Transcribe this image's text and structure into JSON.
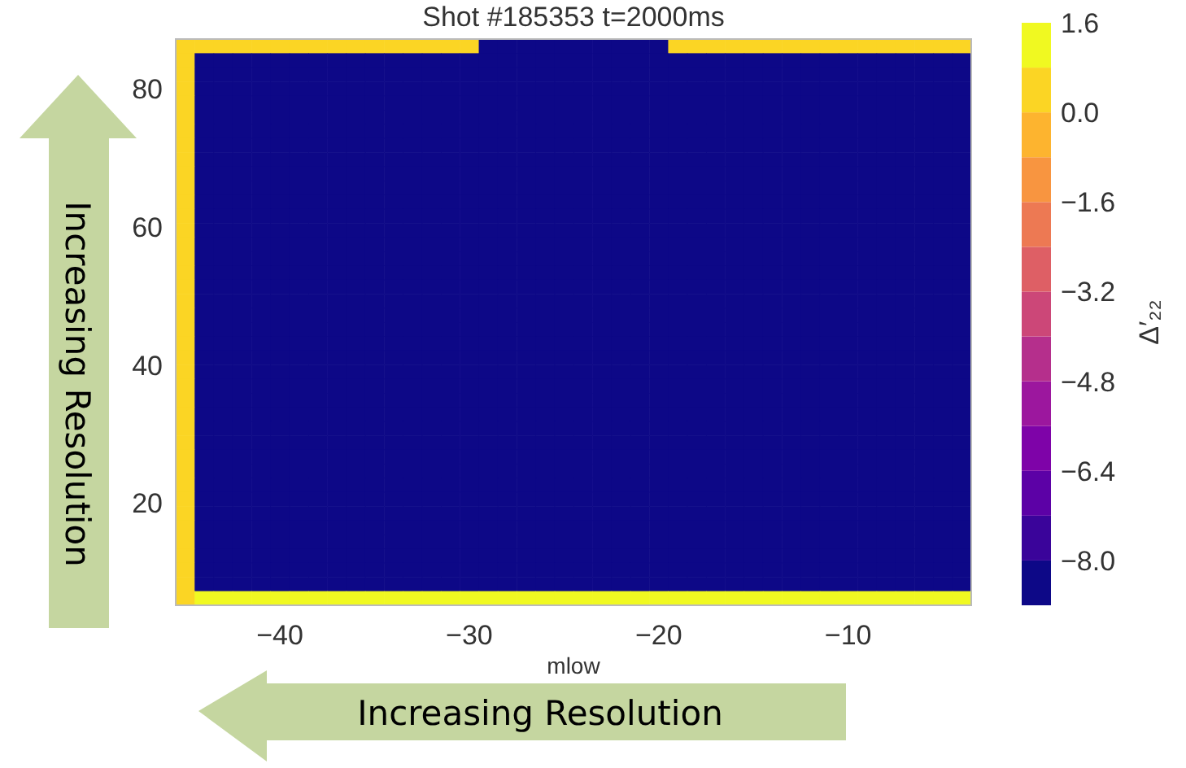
{
  "chart_data": {
    "type": "heatmap",
    "title": "Shot #185353 t=2000ms",
    "xlabel": "mlow",
    "clabel": "Δ′₂₂",
    "annotations": [
      "Increasing Resolution",
      "Increasing Resolution"
    ],
    "xlim": [
      -45.5,
      -3.5
    ],
    "xticks": [
      {
        "value": -40,
        "label": "−40"
      },
      {
        "value": -30,
        "label": "−30"
      },
      {
        "value": -20,
        "label": "−20"
      },
      {
        "value": -10,
        "label": "−10"
      }
    ],
    "ylim": [
      5.2,
      87.2
    ],
    "yticks": [
      20,
      40,
      60,
      80
    ],
    "clim": [
      -8.8,
      1.6
    ],
    "cticks": [
      {
        "value": 1.6,
        "label": "1.6"
      },
      {
        "value": 0,
        "label": "0.0"
      },
      {
        "value": -1.6,
        "label": "−1.6"
      },
      {
        "value": -3.2,
        "label": "−3.2"
      },
      {
        "value": -4.8,
        "label": "−4.8"
      },
      {
        "value": -6.4,
        "label": "−6.4"
      },
      {
        "value": -8.0,
        "label": "−8.0"
      }
    ],
    "cells": [
      [
        0.4,
        0.4,
        0.4,
        0.4,
        0.4,
        0.4,
        0.4,
        0.4,
        0.4,
        0.4,
        0.4,
        0.4,
        0.4,
        0.4,
        0.4,
        0.4,
        -8.4,
        -8.4,
        -8.4,
        -8.4,
        -8.4,
        -8.4,
        -8.4,
        -8.4,
        -8.4,
        -8.4,
        0.4,
        0.4,
        0.4,
        0.4,
        0.4,
        0.4,
        0.4,
        0.4,
        0.4,
        0.4,
        0.4,
        0.4,
        0.4,
        0.4,
        0.4,
        0.4
      ],
      [
        0.4,
        -8.4,
        -8.4,
        -8.4,
        -8.4,
        -8.4,
        -8.4,
        -8.4,
        -8.4,
        -8.4,
        -8.4,
        -8.4,
        -8.4,
        -8.4,
        -8.4,
        -8.4,
        -8.4,
        -8.4,
        -8.4,
        -8.4,
        -8.4,
        -8.4,
        -8.4,
        -8.4,
        -8.4,
        -8.4,
        -8.4,
        -8.4,
        -8.4,
        -8.4,
        -8.4,
        -8.4,
        -8.4,
        -8.4,
        -8.4,
        -8.4,
        -8.4,
        -8.4,
        -8.4,
        -8.4,
        -8.4,
        -8.4
      ],
      [
        0.4,
        -8.4,
        -8.4,
        -8.4,
        -8.4,
        -8.4,
        -8.4,
        -8.4,
        -8.4,
        -8.4,
        -8.4,
        -8.4,
        -8.4,
        -8.4,
        -8.4,
        -8.4,
        -8.4,
        -8.4,
        -8.4,
        -8.4,
        -8.4,
        -8.4,
        -8.4,
        -8.4,
        -8.4,
        -8.4,
        -8.4,
        -8.4,
        -8.4,
        -8.4,
        -8.4,
        -8.4,
        -8.4,
        -8.4,
        -8.4,
        -8.4,
        -8.4,
        -8.4,
        -8.4,
        -8.4,
        -8.4,
        -8.4
      ],
      [
        0.4,
        -8.4,
        -8.4,
        -8.4,
        -8.4,
        -8.4,
        -8.4,
        -8.4,
        -8.4,
        -8.4,
        -8.4,
        -8.4,
        -8.4,
        -8.4,
        -8.4,
        -8.4,
        -8.4,
        -8.4,
        -8.4,
        -8.4,
        -8.4,
        -8.4,
        -8.4,
        -8.4,
        -8.4,
        -8.4,
        -8.4,
        -8.4,
        -8.4,
        -8.4,
        -8.4,
        -8.4,
        -8.4,
        -8.4,
        -8.4,
        -8.4,
        -8.4,
        -8.4,
        -8.4,
        -8.4,
        -8.4,
        -8.4
      ],
      [
        0.4,
        -8.4,
        -8.4,
        -8.4,
        -8.4,
        -8.4,
        -8.4,
        -8.4,
        -8.4,
        -8.4,
        -8.4,
        -8.4,
        -8.4,
        -8.4,
        -8.4,
        -8.4,
        -8.4,
        -8.4,
        -8.4,
        -8.4,
        -8.4,
        -8.4,
        -8.4,
        -8.4,
        -8.4,
        -8.4,
        -8.4,
        -8.4,
        -8.4,
        -8.4,
        -8.4,
        -8.4,
        -8.4,
        -8.4,
        -8.4,
        -8.4,
        -8.4,
        -8.4,
        -8.4,
        -8.4,
        -8.4,
        -8.4
      ],
      [
        0.4,
        -8.4,
        -8.4,
        -8.4,
        -8.4,
        -8.4,
        -8.4,
        -8.4,
        -8.4,
        -8.4,
        -8.4,
        -8.4,
        -8.4,
        -8.4,
        -8.4,
        -8.4,
        -8.4,
        -8.4,
        -8.4,
        -8.4,
        -8.4,
        -8.4,
        -8.4,
        -8.4,
        -8.4,
        -8.4,
        -8.4,
        -8.4,
        -8.4,
        -8.4,
        -8.4,
        -8.4,
        -8.4,
        -8.4,
        -8.4,
        -8.4,
        -8.4,
        -8.4,
        -8.4,
        -8.4,
        -8.4,
        -8.4
      ],
      [
        0.4,
        -8.4,
        -8.4,
        -8.4,
        -8.4,
        -8.4,
        -8.4,
        -8.4,
        -8.4,
        -8.4,
        -8.4,
        -8.4,
        -8.4,
        -8.4,
        -8.4,
        -8.4,
        -8.4,
        -8.4,
        -8.4,
        -8.4,
        -8.4,
        -8.4,
        -8.4,
        -8.4,
        -8.4,
        -8.4,
        -8.4,
        -8.4,
        -8.4,
        -8.4,
        -8.4,
        -8.4,
        -8.4,
        -8.4,
        -8.4,
        -8.4,
        -8.4,
        -8.4,
        -8.4,
        -8.4,
        -8.4,
        -8.4
      ],
      [
        0.4,
        -8.4,
        -8.4,
        -8.4,
        -8.4,
        -8.4,
        -8.4,
        -8.4,
        -8.4,
        -8.4,
        -8.4,
        -8.4,
        -8.4,
        -8.4,
        -8.4,
        -8.4,
        -8.4,
        -8.4,
        -8.4,
        -8.4,
        -8.4,
        -8.4,
        -8.4,
        -8.4,
        -8.4,
        -8.4,
        -8.4,
        -8.4,
        -8.4,
        -8.4,
        -8.4,
        -8.4,
        -8.4,
        -8.4,
        -8.4,
        -8.4,
        -8.4,
        -8.4,
        -8.4,
        -8.4,
        -8.4,
        -8.4
      ],
      [
        0.4,
        -8.4,
        -8.4,
        -8.4,
        -8.4,
        -8.4,
        -8.4,
        -8.4,
        -8.4,
        -8.4,
        -8.4,
        -8.4,
        -8.4,
        -8.4,
        -8.4,
        -8.4,
        -8.4,
        -8.4,
        -8.4,
        -8.4,
        -8.4,
        -8.4,
        -8.4,
        -8.4,
        -8.4,
        -8.4,
        -8.4,
        -8.4,
        -8.4,
        -8.4,
        -8.4,
        -8.4,
        -8.4,
        -8.4,
        -8.4,
        -8.4,
        -8.4,
        -8.4,
        -8.4,
        -8.4,
        -8.4,
        -8.4
      ],
      [
        0.4,
        -8.4,
        -8.4,
        -8.4,
        -8.4,
        -8.4,
        -8.4,
        -8.4,
        -8.4,
        -8.4,
        -8.4,
        -8.4,
        -8.4,
        -8.4,
        -8.4,
        -8.4,
        -8.4,
        -8.4,
        -8.4,
        -8.4,
        -8.4,
        -8.4,
        -8.4,
        -8.4,
        -8.4,
        -8.4,
        -8.4,
        -8.4,
        -8.4,
        -8.4,
        -8.4,
        -8.4,
        -8.4,
        -8.4,
        -8.4,
        -8.4,
        -8.4,
        -8.4,
        -8.4,
        -8.4,
        -8.4,
        -8.4
      ],
      [
        0.4,
        -8.4,
        -8.4,
        -8.4,
        -8.4,
        -8.4,
        -8.4,
        -8.4,
        -8.4,
        -8.4,
        -8.4,
        -8.4,
        -8.4,
        -8.4,
        -8.4,
        -8.4,
        -8.4,
        -8.4,
        -8.4,
        -8.4,
        -8.4,
        -8.4,
        -8.4,
        -8.4,
        -8.4,
        -8.4,
        -8.4,
        -8.4,
        -8.4,
        -8.4,
        -8.4,
        -8.4,
        -8.4,
        -8.4,
        -8.4,
        -8.4,
        -8.4,
        -8.4,
        -8.4,
        -8.4,
        -8.4,
        -8.4
      ],
      [
        0.4,
        -8.4,
        -8.4,
        -8.4,
        -8.4,
        -8.4,
        -8.4,
        -8.4,
        -8.4,
        -8.4,
        -8.4,
        -8.4,
        -8.4,
        -8.4,
        -8.4,
        -8.4,
        -8.4,
        -8.4,
        -8.4,
        -8.4,
        -8.4,
        -8.4,
        -8.4,
        -8.4,
        -8.4,
        -8.4,
        -8.4,
        -8.4,
        -8.4,
        -8.4,
        -8.4,
        -8.4,
        -8.4,
        -8.4,
        -8.4,
        -8.4,
        -8.4,
        -8.4,
        -8.4,
        -8.4,
        -8.4,
        -8.4
      ],
      [
        0.4,
        -8.4,
        -8.4,
        -8.4,
        -8.4,
        -8.4,
        -8.4,
        -8.4,
        -8.4,
        -8.4,
        -8.4,
        -8.4,
        -8.4,
        -8.4,
        -8.4,
        -8.4,
        -8.4,
        -8.4,
        -8.4,
        -8.4,
        -8.4,
        -8.4,
        -8.4,
        -8.4,
        -8.4,
        -8.4,
        -8.4,
        -8.4,
        -8.4,
        -8.4,
        -8.4,
        -8.4,
        -8.4,
        -8.4,
        -8.4,
        -8.4,
        -8.4,
        -8.4,
        -8.4,
        -8.4,
        -8.4,
        -8.4
      ],
      [
        0.4,
        -8.4,
        -8.4,
        -8.4,
        -8.4,
        -8.4,
        -8.4,
        -8.4,
        -8.4,
        -8.4,
        -8.4,
        -8.4,
        -8.4,
        -8.4,
        -8.4,
        -8.4,
        -8.4,
        -8.4,
        -8.4,
        -8.4,
        -8.4,
        -8.4,
        -8.4,
        -8.4,
        -8.4,
        -8.4,
        -8.4,
        -8.4,
        -8.4,
        -8.4,
        -8.4,
        -8.4,
        -8.4,
        -8.4,
        -8.4,
        -8.4,
        -8.4,
        -8.4,
        -8.4,
        -8.4,
        -8.4,
        -8.4
      ],
      [
        0.4,
        -8.4,
        -8.4,
        -8.4,
        -8.4,
        -8.4,
        -8.4,
        -8.4,
        -8.4,
        -8.4,
        -8.4,
        -8.4,
        -8.4,
        -8.4,
        -8.4,
        -8.4,
        -8.4,
        -8.4,
        -8.4,
        -8.4,
        -8.4,
        -8.4,
        -8.4,
        -8.4,
        -8.4,
        -8.4,
        -8.4,
        -8.4,
        -8.4,
        -8.4,
        -8.4,
        -8.4,
        -8.4,
        -8.4,
        -8.4,
        -8.4,
        -8.4,
        -8.4,
        -8.4,
        -8.4,
        -8.4,
        -8.4
      ],
      [
        0.4,
        -8.4,
        -8.4,
        -8.4,
        -8.4,
        -8.4,
        -8.4,
        -8.4,
        -8.4,
        -8.4,
        -8.4,
        -8.4,
        -8.4,
        -8.4,
        -8.4,
        -8.4,
        -8.4,
        -8.4,
        -8.4,
        -8.4,
        -8.4,
        -8.4,
        -8.4,
        -8.4,
        -8.4,
        -8.4,
        -8.4,
        -8.4,
        -8.4,
        -8.4,
        -8.4,
        -8.4,
        -8.4,
        -8.4,
        -8.4,
        -8.4,
        -8.4,
        -8.4,
        -8.4,
        -8.4,
        -8.4,
        -8.4
      ],
      [
        0.4,
        -8.4,
        -8.4,
        -8.4,
        -8.4,
        -8.4,
        -8.4,
        -8.4,
        -8.4,
        -8.4,
        -8.4,
        -8.4,
        -8.4,
        -8.4,
        -8.4,
        -8.4,
        -8.4,
        -8.4,
        -8.4,
        -8.4,
        -8.4,
        -8.4,
        -8.4,
        -8.4,
        -8.4,
        -8.4,
        -8.4,
        -8.4,
        -8.4,
        -8.4,
        -8.4,
        -8.4,
        -8.4,
        -8.4,
        -8.4,
        -8.4,
        -8.4,
        -8.4,
        -8.4,
        -8.4,
        -8.4,
        -8.4
      ],
      [
        0.4,
        -8.4,
        -8.4,
        -8.4,
        -8.4,
        -8.4,
        -8.4,
        -8.4,
        -8.4,
        -8.4,
        -8.4,
        -8.4,
        -8.4,
        -8.4,
        -8.4,
        -8.4,
        -8.4,
        -8.4,
        -8.4,
        -8.4,
        -8.4,
        -8.4,
        -8.4,
        -8.4,
        -8.4,
        -8.4,
        -8.4,
        -8.4,
        -8.4,
        -8.4,
        -8.4,
        -8.4,
        -8.4,
        -8.4,
        -8.4,
        -8.4,
        -8.4,
        -8.4,
        -8.4,
        -8.4,
        -8.4,
        -8.4
      ],
      [
        0.4,
        -8.4,
        -8.4,
        -8.4,
        -8.4,
        -8.4,
        -8.4,
        -8.4,
        -8.4,
        -8.4,
        -8.4,
        -8.4,
        -8.4,
        -8.4,
        -8.4,
        -8.4,
        -8.4,
        -8.4,
        -8.4,
        -8.4,
        -8.4,
        -8.4,
        -8.4,
        -8.4,
        -8.4,
        -8.4,
        -8.4,
        -8.4,
        -8.4,
        -8.4,
        -8.4,
        -8.4,
        -8.4,
        -8.4,
        -8.4,
        -8.4,
        -8.4,
        -8.4,
        -8.4,
        -8.4,
        -8.4,
        -8.4
      ],
      [
        0.4,
        -8.4,
        -8.4,
        -8.4,
        -8.4,
        -8.4,
        -8.4,
        -8.4,
        -8.4,
        -8.4,
        -8.4,
        -8.4,
        -8.4,
        -8.4,
        -8.4,
        -8.4,
        -8.4,
        -8.4,
        -8.4,
        -8.4,
        -8.4,
        -8.4,
        -8.4,
        -8.4,
        -8.4,
        -8.4,
        -8.4,
        -8.4,
        -8.4,
        -8.4,
        -8.4,
        -8.4,
        -8.4,
        -8.4,
        -8.4,
        -8.4,
        -8.4,
        -8.4,
        -8.4,
        -8.4,
        -8.4,
        -8.4
      ],
      [
        0.4,
        -8.4,
        -8.4,
        -8.4,
        -8.4,
        -8.4,
        -8.4,
        -8.4,
        -8.4,
        -8.4,
        -8.4,
        -8.4,
        -8.4,
        -8.4,
        -8.4,
        -8.4,
        -8.4,
        -8.4,
        -8.4,
        -8.4,
        -8.4,
        -8.4,
        -8.4,
        -8.4,
        -8.4,
        -8.4,
        -8.4,
        -8.4,
        -8.4,
        -8.4,
        -8.4,
        -8.4,
        -8.4,
        -8.4,
        -8.4,
        -8.4,
        -8.4,
        -8.4,
        -8.4,
        -8.4,
        -8.4,
        -8.4
      ],
      [
        0.4,
        -8.4,
        -8.4,
        -8.4,
        -8.4,
        -8.4,
        -8.4,
        -8.4,
        -8.4,
        -8.4,
        -8.4,
        -8.4,
        -8.4,
        -8.4,
        -8.4,
        -8.4,
        -8.4,
        -8.4,
        -8.4,
        -8.4,
        -8.4,
        -8.4,
        -8.4,
        -8.4,
        -8.4,
        -8.4,
        -8.4,
        -8.4,
        -8.4,
        -8.4,
        -8.4,
        -8.4,
        -8.4,
        -8.4,
        -8.4,
        -8.4,
        -8.4,
        -8.4,
        -8.4,
        -8.4,
        -8.4,
        -8.4
      ],
      [
        0.4,
        -8.4,
        -8.4,
        -8.4,
        -8.4,
        -8.4,
        -8.4,
        -8.4,
        -8.4,
        -8.4,
        -8.4,
        -8.4,
        -8.4,
        -8.4,
        -8.4,
        -8.4,
        -8.4,
        -8.4,
        -8.4,
        -8.4,
        -8.4,
        -8.4,
        -8.4,
        -8.4,
        -8.4,
        -8.4,
        -8.4,
        -8.4,
        -8.4,
        -8.4,
        -8.4,
        -8.4,
        -8.4,
        -8.4,
        -8.4,
        -8.4,
        -8.4,
        -8.4,
        -8.4,
        -8.4,
        -8.4,
        -8.4
      ],
      [
        0.4,
        -8.4,
        -8.4,
        -8.4,
        -8.4,
        -8.4,
        -8.4,
        -8.4,
        -8.4,
        -8.4,
        -8.4,
        -8.4,
        -8.4,
        -8.4,
        -8.4,
        -8.4,
        -8.4,
        -8.4,
        -8.4,
        -8.4,
        -8.4,
        -8.4,
        -8.4,
        -8.4,
        -8.4,
        -8.4,
        -8.4,
        -8.4,
        -8.4,
        -8.4,
        -8.4,
        -8.4,
        -8.4,
        -8.4,
        -8.4,
        -8.4,
        -8.4,
        -8.4,
        -8.4,
        -8.4,
        -8.4,
        -8.4
      ],
      [
        0.4,
        -8.4,
        -8.4,
        -8.4,
        -8.4,
        -8.4,
        -8.4,
        -8.4,
        -8.4,
        -8.4,
        -8.4,
        -8.4,
        -8.4,
        -8.4,
        -8.4,
        -8.4,
        -8.4,
        -8.4,
        -8.4,
        -8.4,
        -8.4,
        -8.4,
        -8.4,
        -8.4,
        -8.4,
        -8.4,
        -8.4,
        -8.4,
        -8.4,
        -8.4,
        -8.4,
        -8.4,
        -8.4,
        -8.4,
        -8.4,
        -8.4,
        -8.4,
        -8.4,
        -8.4,
        -8.4,
        -8.4,
        -8.4
      ],
      [
        0.4,
        -8.4,
        -8.4,
        -8.4,
        -8.4,
        -8.4,
        -8.4,
        -8.4,
        -8.4,
        -8.4,
        -8.4,
        -8.4,
        -8.4,
        -8.4,
        -8.4,
        -8.4,
        -8.4,
        -8.4,
        -8.4,
        -8.4,
        -8.4,
        -8.4,
        -8.4,
        -8.4,
        -8.4,
        -8.4,
        -8.4,
        -8.4,
        -8.4,
        -8.4,
        -8.4,
        -8.4,
        -8.4,
        -8.4,
        -8.4,
        -8.4,
        -8.4,
        -8.4,
        -8.4,
        -8.4,
        -8.4,
        -8.4
      ],
      [
        0.4,
        -8.4,
        -8.4,
        -8.4,
        -8.4,
        -8.4,
        -8.4,
        -8.4,
        -8.4,
        -8.4,
        -8.4,
        -8.4,
        -8.4,
        -8.4,
        -8.4,
        -8.4,
        -8.4,
        -8.4,
        -8.4,
        -8.4,
        -8.4,
        -8.4,
        -8.4,
        -8.4,
        -8.4,
        -8.4,
        -8.4,
        -8.4,
        -8.4,
        -8.4,
        -8.4,
        -8.4,
        -8.4,
        -8.4,
        -8.4,
        -8.4,
        -8.4,
        -8.4,
        -8.4,
        -8.4,
        -8.4,
        -8.4
      ],
      [
        0.4,
        -8.4,
        -8.4,
        -8.4,
        -8.4,
        -8.4,
        -8.4,
        -8.4,
        -8.4,
        -8.4,
        -8.4,
        -8.4,
        -8.4,
        -8.4,
        -8.4,
        -8.4,
        -8.4,
        -8.4,
        -8.4,
        -8.4,
        -8.4,
        -8.4,
        -8.4,
        -8.4,
        -8.4,
        -8.4,
        -8.4,
        -8.4,
        -8.4,
        -8.4,
        -8.4,
        -8.4,
        -8.4,
        -8.4,
        -8.4,
        -8.4,
        -8.4,
        -8.4,
        -8.4,
        -8.4,
        -8.4,
        -8.4
      ],
      [
        0.4,
        -8.4,
        -8.4,
        -8.4,
        -8.4,
        -8.4,
        -8.4,
        -8.4,
        -8.4,
        -8.4,
        -8.4,
        -8.4,
        -8.4,
        -8.4,
        -8.4,
        -8.4,
        -8.4,
        -8.4,
        -8.4,
        -8.4,
        -8.4,
        -8.4,
        -8.4,
        -8.4,
        -8.4,
        -8.4,
        -8.4,
        -8.4,
        -8.4,
        -8.4,
        -8.4,
        -8.4,
        -8.4,
        -8.4,
        -8.4,
        -8.4,
        -8.4,
        -8.4,
        -8.4,
        -8.4,
        -8.4,
        -8.4
      ],
      [
        0.4,
        -8.4,
        -8.4,
        -8.4,
        -8.4,
        -8.4,
        -8.4,
        -8.4,
        -8.4,
        -8.4,
        -8.4,
        -8.4,
        -8.4,
        -8.4,
        -8.4,
        -8.4,
        -8.4,
        -8.4,
        -8.4,
        -8.4,
        -8.4,
        -8.4,
        -8.4,
        -8.4,
        -8.4,
        -8.4,
        -8.4,
        -8.4,
        -8.4,
        -8.4,
        -8.4,
        -8.4,
        -8.4,
        -8.4,
        -8.4,
        -8.4,
        -8.4,
        -8.4,
        -8.4,
        -8.4,
        -8.4,
        -8.4
      ],
      [
        0.4,
        -8.4,
        -8.4,
        -8.4,
        -8.4,
        -8.4,
        -8.4,
        -8.4,
        -8.4,
        -8.4,
        -8.4,
        -8.4,
        -8.4,
        -8.4,
        -8.4,
        -8.4,
        -8.4,
        -8.4,
        -8.4,
        -8.4,
        -8.4,
        -8.4,
        -8.4,
        -8.4,
        -8.4,
        -8.4,
        -8.4,
        -8.4,
        -8.4,
        -8.4,
        -8.4,
        -8.4,
        -8.4,
        -8.4,
        -8.4,
        -8.4,
        -8.4,
        -8.4,
        -8.4,
        -8.4,
        -8.4,
        -8.4
      ],
      [
        0.4,
        -8.4,
        -8.4,
        -8.4,
        -8.4,
        -8.4,
        -8.4,
        -8.4,
        -8.4,
        -8.4,
        -8.4,
        -8.4,
        -8.4,
        -8.4,
        -8.4,
        -8.4,
        -8.4,
        -8.4,
        -8.4,
        -8.4,
        -8.4,
        -8.4,
        -8.4,
        -8.4,
        -8.4,
        -8.4,
        -8.4,
        -8.4,
        -8.4,
        -8.4,
        -8.4,
        -8.4,
        -8.4,
        -8.4,
        -8.4,
        -8.4,
        -8.4,
        -8.4,
        -8.4,
        -8.4,
        -8.4,
        -8.4
      ],
      [
        0.4,
        -8.4,
        -8.4,
        -8.4,
        -8.4,
        -8.4,
        -8.4,
        -8.4,
        -8.4,
        -8.4,
        -8.4,
        -8.4,
        -8.4,
        -8.4,
        -8.4,
        -8.4,
        -8.4,
        -8.4,
        -8.4,
        -8.4,
        -8.4,
        -8.4,
        -8.4,
        -8.4,
        -8.4,
        -8.4,
        -8.4,
        -8.4,
        -8.4,
        -8.4,
        -8.4,
        -8.4,
        -8.4,
        -8.4,
        -8.4,
        -8.4,
        -8.4,
        -8.4,
        -8.4,
        -8.4,
        -8.4,
        -8.4
      ],
      [
        0.4,
        -8.4,
        -8.4,
        -8.4,
        -8.4,
        -8.4,
        -8.4,
        -8.4,
        -8.4,
        -8.4,
        -8.4,
        -8.4,
        -8.4,
        -8.4,
        -8.4,
        -8.4,
        -8.4,
        -8.4,
        -8.4,
        -8.4,
        -8.4,
        -8.4,
        -8.4,
        -8.4,
        -8.4,
        -8.4,
        -8.4,
        -8.4,
        -8.4,
        -8.4,
        -8.4,
        -8.4,
        -8.4,
        -8.4,
        -8.4,
        -8.4,
        -8.4,
        -8.4,
        -8.4,
        -8.4,
        -8.4,
        -8.4
      ],
      [
        0.4,
        -8.4,
        -8.4,
        -8.4,
        -8.4,
        -8.4,
        -8.4,
        -8.4,
        -8.4,
        -8.4,
        -8.4,
        -8.4,
        -8.4,
        -8.4,
        -8.4,
        -8.4,
        -8.4,
        -8.4,
        -8.4,
        -8.4,
        -8.4,
        -8.4,
        -8.4,
        -8.4,
        -8.4,
        -8.4,
        -8.4,
        -8.4,
        -8.4,
        -8.4,
        -8.4,
        -8.4,
        -8.4,
        -8.4,
        -8.4,
        -8.4,
        -8.4,
        -8.4,
        -8.4,
        -8.4,
        -8.4,
        -8.4
      ],
      [
        0.4,
        -8.4,
        -8.4,
        -8.4,
        -8.4,
        -8.4,
        -8.4,
        -8.4,
        -8.4,
        -8.4,
        -8.4,
        -8.4,
        -8.4,
        -8.4,
        -8.4,
        -8.4,
        -8.4,
        -8.4,
        -8.4,
        -8.4,
        -8.4,
        -8.4,
        -8.4,
        -8.4,
        -8.4,
        -8.4,
        -8.4,
        -8.4,
        -8.4,
        -8.4,
        -8.4,
        -8.4,
        -8.4,
        -8.4,
        -8.4,
        -8.4,
        -8.4,
        -8.4,
        -8.4,
        -8.4,
        -8.4,
        -8.4
      ],
      [
        0.4,
        -8.4,
        -8.4,
        -8.4,
        -8.4,
        -8.4,
        -8.4,
        -8.4,
        -8.4,
        -8.4,
        -8.4,
        -8.4,
        -8.4,
        -8.4,
        -8.4,
        -8.4,
        -8.4,
        -8.4,
        -8.4,
        -8.4,
        -8.4,
        -8.4,
        -8.4,
        -8.4,
        -8.4,
        -8.4,
        -8.4,
        -8.4,
        -8.4,
        -8.4,
        -8.4,
        -8.4,
        -8.4,
        -8.4,
        -8.4,
        -8.4,
        -8.4,
        -8.4,
        -8.4,
        -8.4,
        -8.4,
        -8.4
      ],
      [
        0.4,
        -8.4,
        -8.4,
        -8.4,
        -8.4,
        -8.4,
        -8.4,
        -8.4,
        -8.4,
        -8.4,
        -8.4,
        -8.4,
        -8.4,
        -8.4,
        -8.4,
        -8.4,
        -8.4,
        -8.4,
        -8.4,
        -8.4,
        -8.4,
        -8.4,
        -8.4,
        -8.4,
        -8.4,
        -8.4,
        -8.4,
        -8.4,
        -8.4,
        -8.4,
        -8.4,
        -8.4,
        -8.4,
        -8.4,
        -8.4,
        -8.4,
        -8.4,
        -8.4,
        -8.4,
        -8.4,
        -8.4,
        -8.4
      ],
      [
        0.4,
        -8.4,
        -8.4,
        -8.4,
        -8.4,
        -8.4,
        -8.4,
        -8.4,
        -8.4,
        -8.4,
        -8.4,
        -8.4,
        -8.4,
        -8.4,
        -8.4,
        -8.4,
        -8.4,
        -8.4,
        -8.4,
        -8.4,
        -8.4,
        -8.4,
        -8.4,
        -8.4,
        -8.4,
        -8.4,
        -8.4,
        -8.4,
        -8.4,
        -8.4,
        -8.4,
        -8.4,
        -8.4,
        -8.4,
        -8.4,
        -8.4,
        -8.4,
        -8.4,
        -8.4,
        -8.4,
        -8.4,
        -8.4
      ],
      [
        0.4,
        1.2,
        1.2,
        1.2,
        1.2,
        1.2,
        1.2,
        1.2,
        1.2,
        1.2,
        1.2,
        1.2,
        1.2,
        1.2,
        1.2,
        1.2,
        1.2,
        1.2,
        1.2,
        1.2,
        1.2,
        1.2,
        1.2,
        1.2,
        1.2,
        1.2,
        1.2,
        1.2,
        1.2,
        1.2,
        1.2,
        1.2,
        1.2,
        1.2,
        1.2,
        1.2,
        1.2,
        1.2,
        1.2,
        1.2,
        1.2,
        1.2
      ]
    ]
  }
}
